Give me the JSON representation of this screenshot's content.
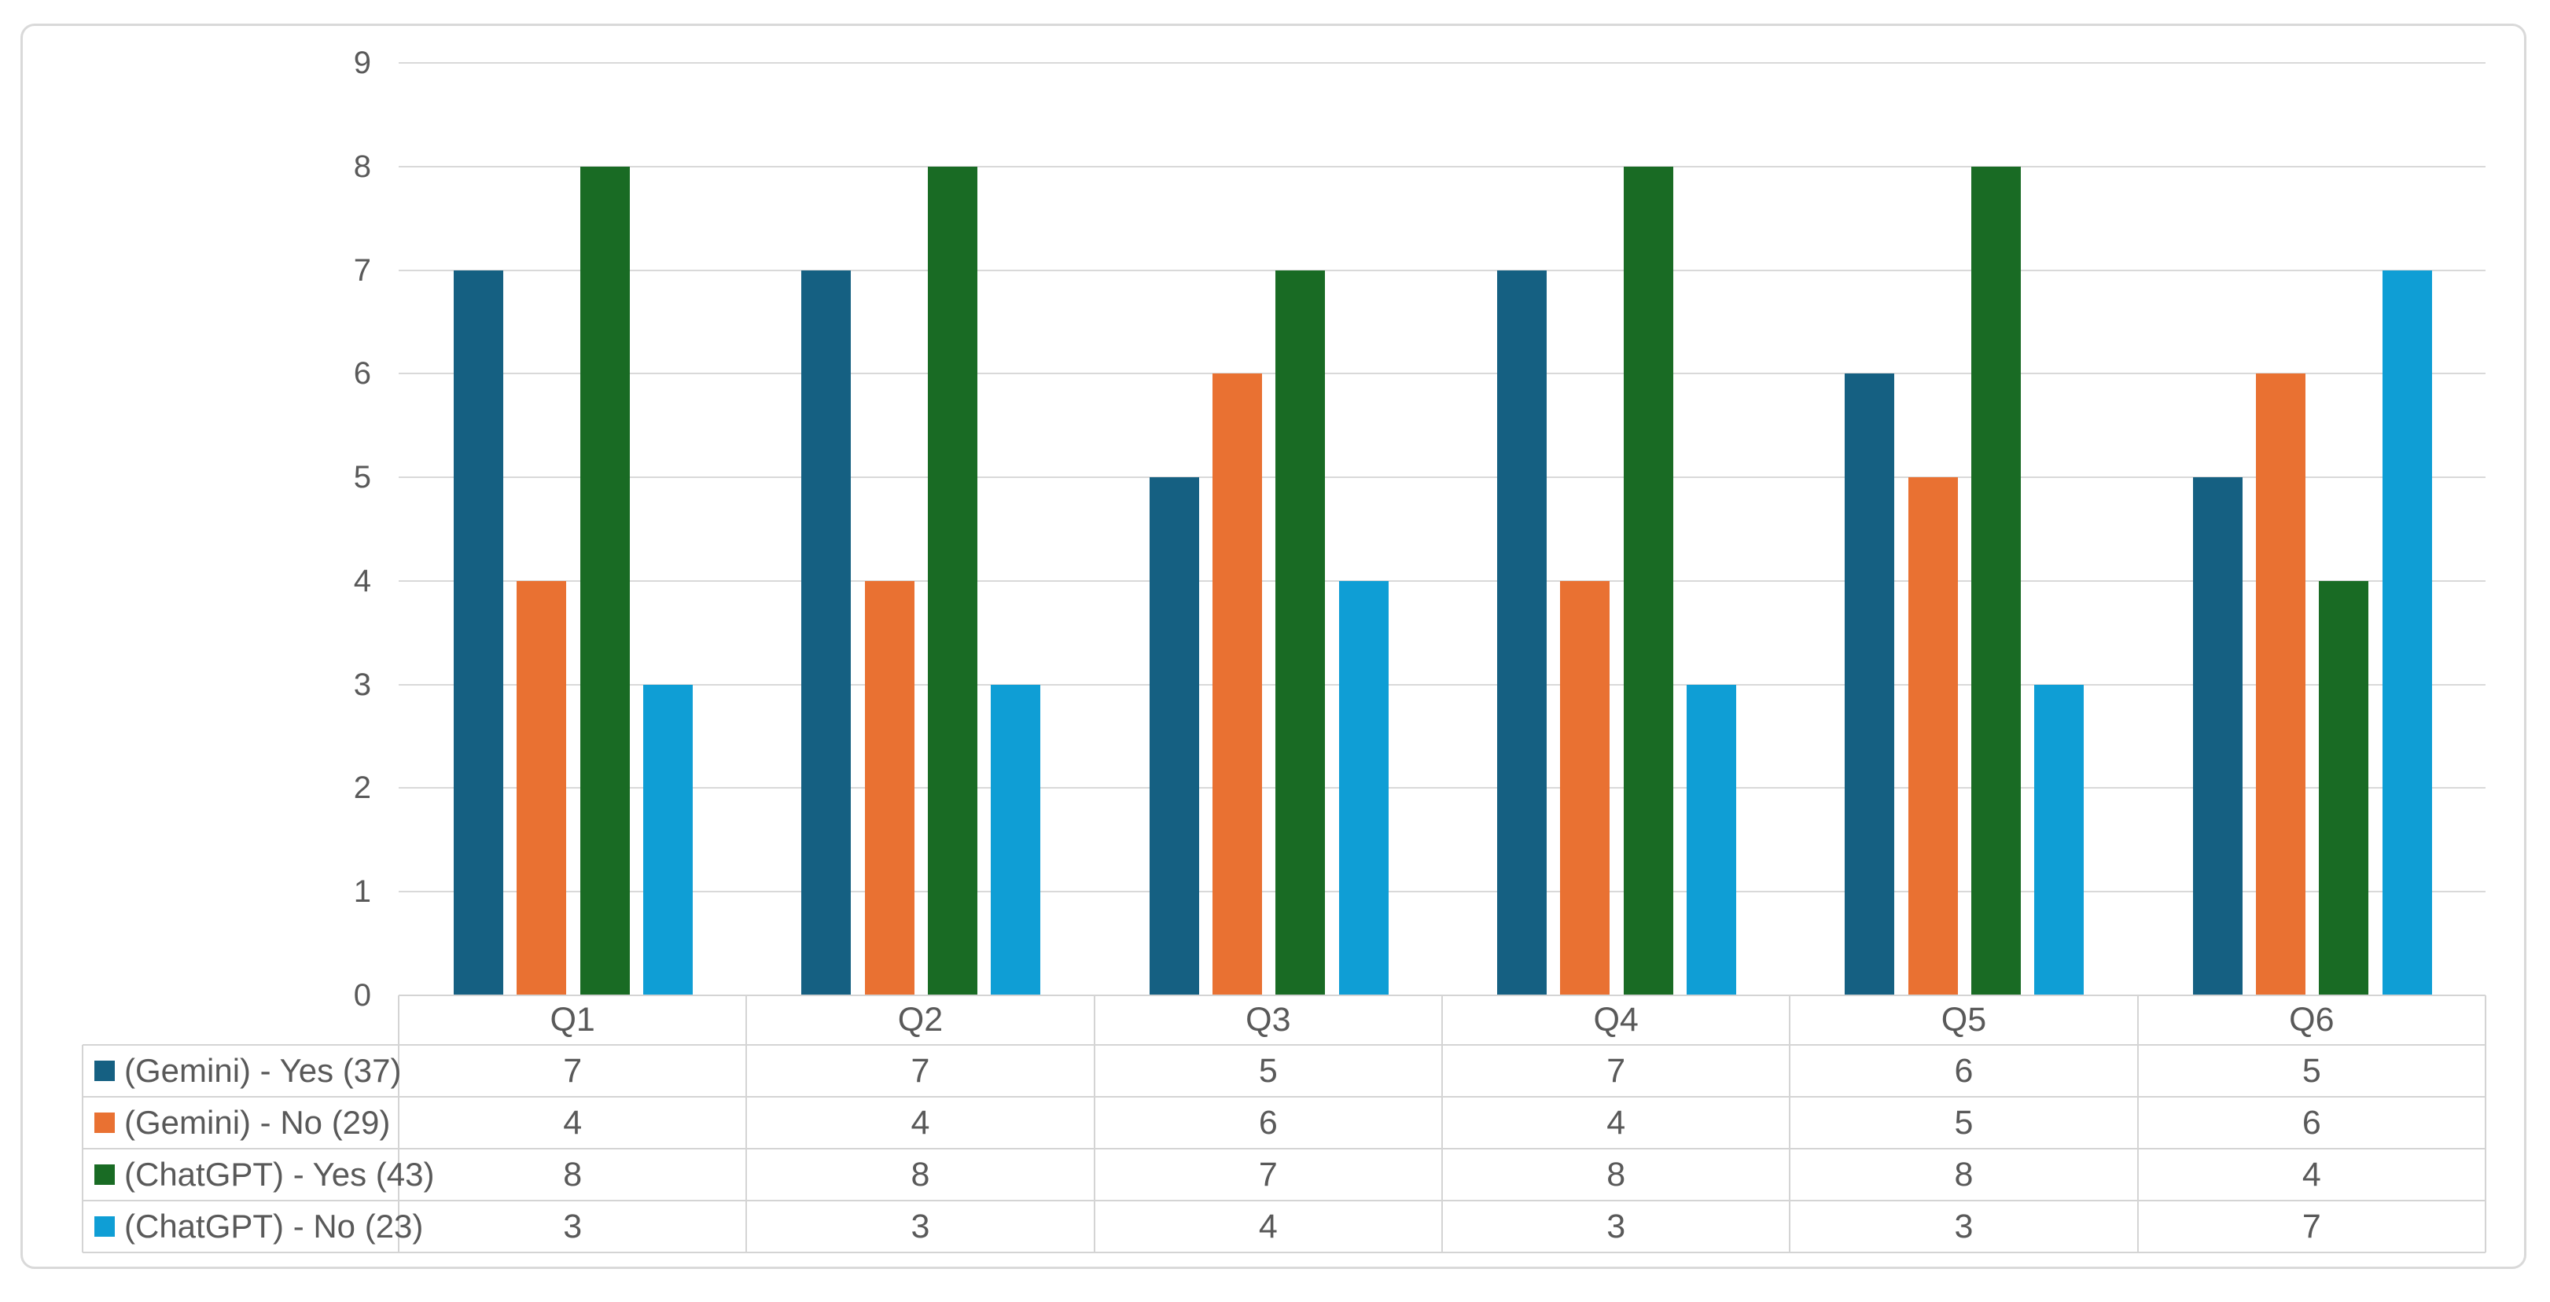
{
  "chart_data": {
    "type": "bar",
    "categories": [
      "Q1",
      "Q2",
      "Q3",
      "Q4",
      "Q5",
      "Q6"
    ],
    "series": [
      {
        "name": "(Gemini) - Yes (37)",
        "color": "#156082",
        "values": [
          7,
          7,
          5,
          7,
          6,
          5
        ]
      },
      {
        "name": "(Gemini) - No (29)",
        "color": "#E97132",
        "values": [
          4,
          4,
          6,
          4,
          5,
          6
        ]
      },
      {
        "name": "(ChatGPT) - Yes (43)",
        "color": "#196B24",
        "values": [
          8,
          8,
          7,
          8,
          8,
          4
        ]
      },
      {
        "name": "(ChatGPT) - No (23)",
        "color": "#0F9ED5",
        "values": [
          3,
          3,
          4,
          3,
          3,
          7
        ]
      }
    ],
    "title": "",
    "xlabel": "",
    "ylabel": "",
    "ylim": [
      0,
      9
    ],
    "y_ticks": [
      0,
      1,
      2,
      3,
      4,
      5,
      6,
      7,
      8,
      9
    ],
    "grid": true,
    "legend_position": "data-table-left",
    "data_table": true
  },
  "colors": {
    "grid": "#D9D9D9",
    "table_border": "#D4D4D4",
    "text": "#595959",
    "frame_border": "#D9D9D9",
    "background": "#FFFFFF"
  }
}
